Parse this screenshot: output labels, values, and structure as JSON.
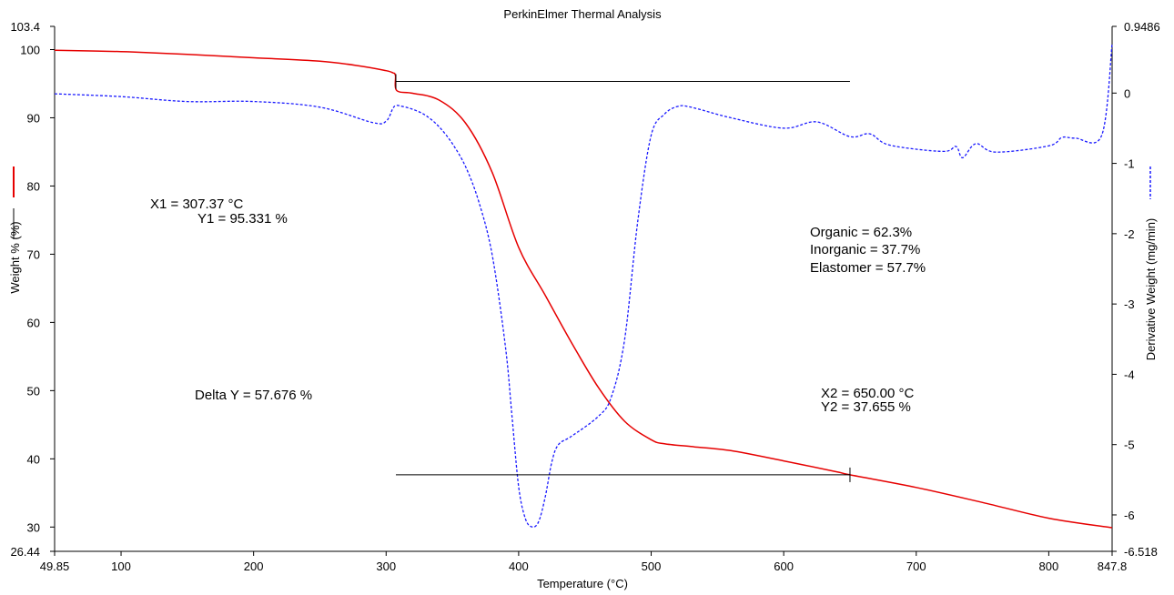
{
  "chart_data": {
    "type": "line",
    "title": "PerkinElmer Thermal Analysis",
    "xlabel": "Temperature (°C)",
    "ylabel_left": "Weight % (%)",
    "ylabel_right": "Derivative Weight (mg/min)",
    "xlim": [
      49.85,
      847.8
    ],
    "ylim_left": [
      26.44,
      103.4
    ],
    "ylim_right": [
      -6.518,
      0.9486
    ],
    "x_ticks": [
      "49.85",
      "100",
      "200",
      "300",
      "400",
      "500",
      "600",
      "700",
      "800",
      "847.8"
    ],
    "x_tick_values": [
      49.85,
      100,
      200,
      300,
      400,
      500,
      600,
      700,
      800,
      847.8
    ],
    "y_left_ticks": [
      "103.4",
      "100",
      "90",
      "80",
      "70",
      "60",
      "50",
      "40",
      "30",
      "26.44"
    ],
    "y_left_tick_values": [
      103.4,
      100,
      90,
      80,
      70,
      60,
      50,
      40,
      30,
      26.44
    ],
    "y_right_ticks": [
      "0.9486",
      "0",
      "-1",
      "-2",
      "-3",
      "-4",
      "-5",
      "-6",
      "-6.518"
    ],
    "y_right_tick_values": [
      0.9486,
      0,
      -1,
      -2,
      -3,
      -4,
      -5,
      -6,
      -6.518
    ],
    "grid": false,
    "series": [
      {
        "axis": "left",
        "color": "#e60000",
        "style": "solid",
        "x": [
          49.85,
          100,
          150,
          200,
          250,
          280,
          300,
          305,
          307,
          308,
          320,
          340,
          360,
          380,
          400,
          420,
          440,
          460,
          480,
          500,
          510,
          530,
          560,
          600,
          640,
          650,
          700,
          750,
          800,
          847.8
        ],
        "y": [
          99.9,
          99.7,
          99.3,
          98.8,
          98.3,
          97.6,
          96.9,
          96.6,
          96.2,
          94.0,
          93.6,
          92.6,
          89.2,
          82.0,
          71.0,
          64.0,
          57.0,
          50.5,
          45.5,
          42.8,
          42.2,
          41.8,
          41.2,
          39.7,
          38.1,
          37.66,
          35.8,
          33.6,
          31.3,
          29.9
        ]
      },
      {
        "axis": "right",
        "color": "#1a1aff",
        "style": "dashed",
        "x": [
          49.85,
          100,
          150,
          200,
          250,
          290,
          300,
          305,
          307,
          310,
          320,
          330,
          340,
          350,
          360,
          370,
          380,
          390,
          395,
          400,
          405,
          410,
          415,
          420,
          425,
          430,
          440,
          460,
          470,
          480,
          490,
          500,
          510,
          520,
          530,
          560,
          600,
          625,
          650,
          665,
          680,
          720,
          730,
          735,
          745,
          760,
          800,
          810,
          820,
          840,
          847.8
        ],
        "y": [
          -0.01,
          -0.05,
          -0.12,
          -0.12,
          -0.2,
          -0.42,
          -0.4,
          -0.22,
          -0.18,
          -0.18,
          -0.23,
          -0.32,
          -0.48,
          -0.72,
          -1.05,
          -1.55,
          -2.3,
          -3.6,
          -4.6,
          -5.6,
          -6.05,
          -6.17,
          -6.1,
          -5.75,
          -5.25,
          -5.0,
          -4.88,
          -4.6,
          -4.32,
          -3.5,
          -1.8,
          -0.6,
          -0.3,
          -0.19,
          -0.2,
          -0.35,
          -0.5,
          -0.41,
          -0.62,
          -0.58,
          -0.74,
          -0.83,
          -0.76,
          -0.92,
          -0.72,
          -0.84,
          -0.75,
          -0.63,
          -0.64,
          -0.6,
          0.7
        ]
      }
    ],
    "markers": [
      {
        "label_x": "X1 = 307.37 °C",
        "label_y": "Y1 = 95.331 %",
        "x": 307.37,
        "y": 95.331
      },
      {
        "label_x": "X2 = 650.00 °C",
        "label_y": "Y2 = 37.655 %",
        "x": 650.0,
        "y": 37.655
      }
    ],
    "delta_label": "Delta Y = 57.676 %",
    "composition": [
      "Organic = 62.3%",
      "Inorganic = 37.7%",
      "Elastomer = 57.7%"
    ]
  }
}
